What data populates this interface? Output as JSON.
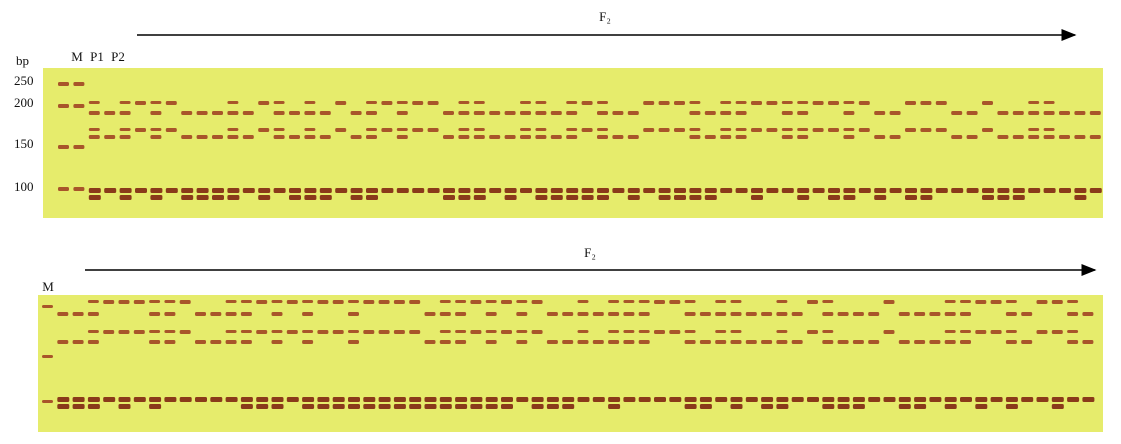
{
  "top_panel": {
    "size_unit": "bp",
    "size_labels": [
      "250",
      "200",
      "150",
      "100"
    ],
    "lane_labels": [
      "M",
      "P1",
      "P2"
    ],
    "group_label": "F₂"
  },
  "bottom_panel": {
    "lane_labels": [
      "M"
    ],
    "group_label": "F₂"
  }
}
